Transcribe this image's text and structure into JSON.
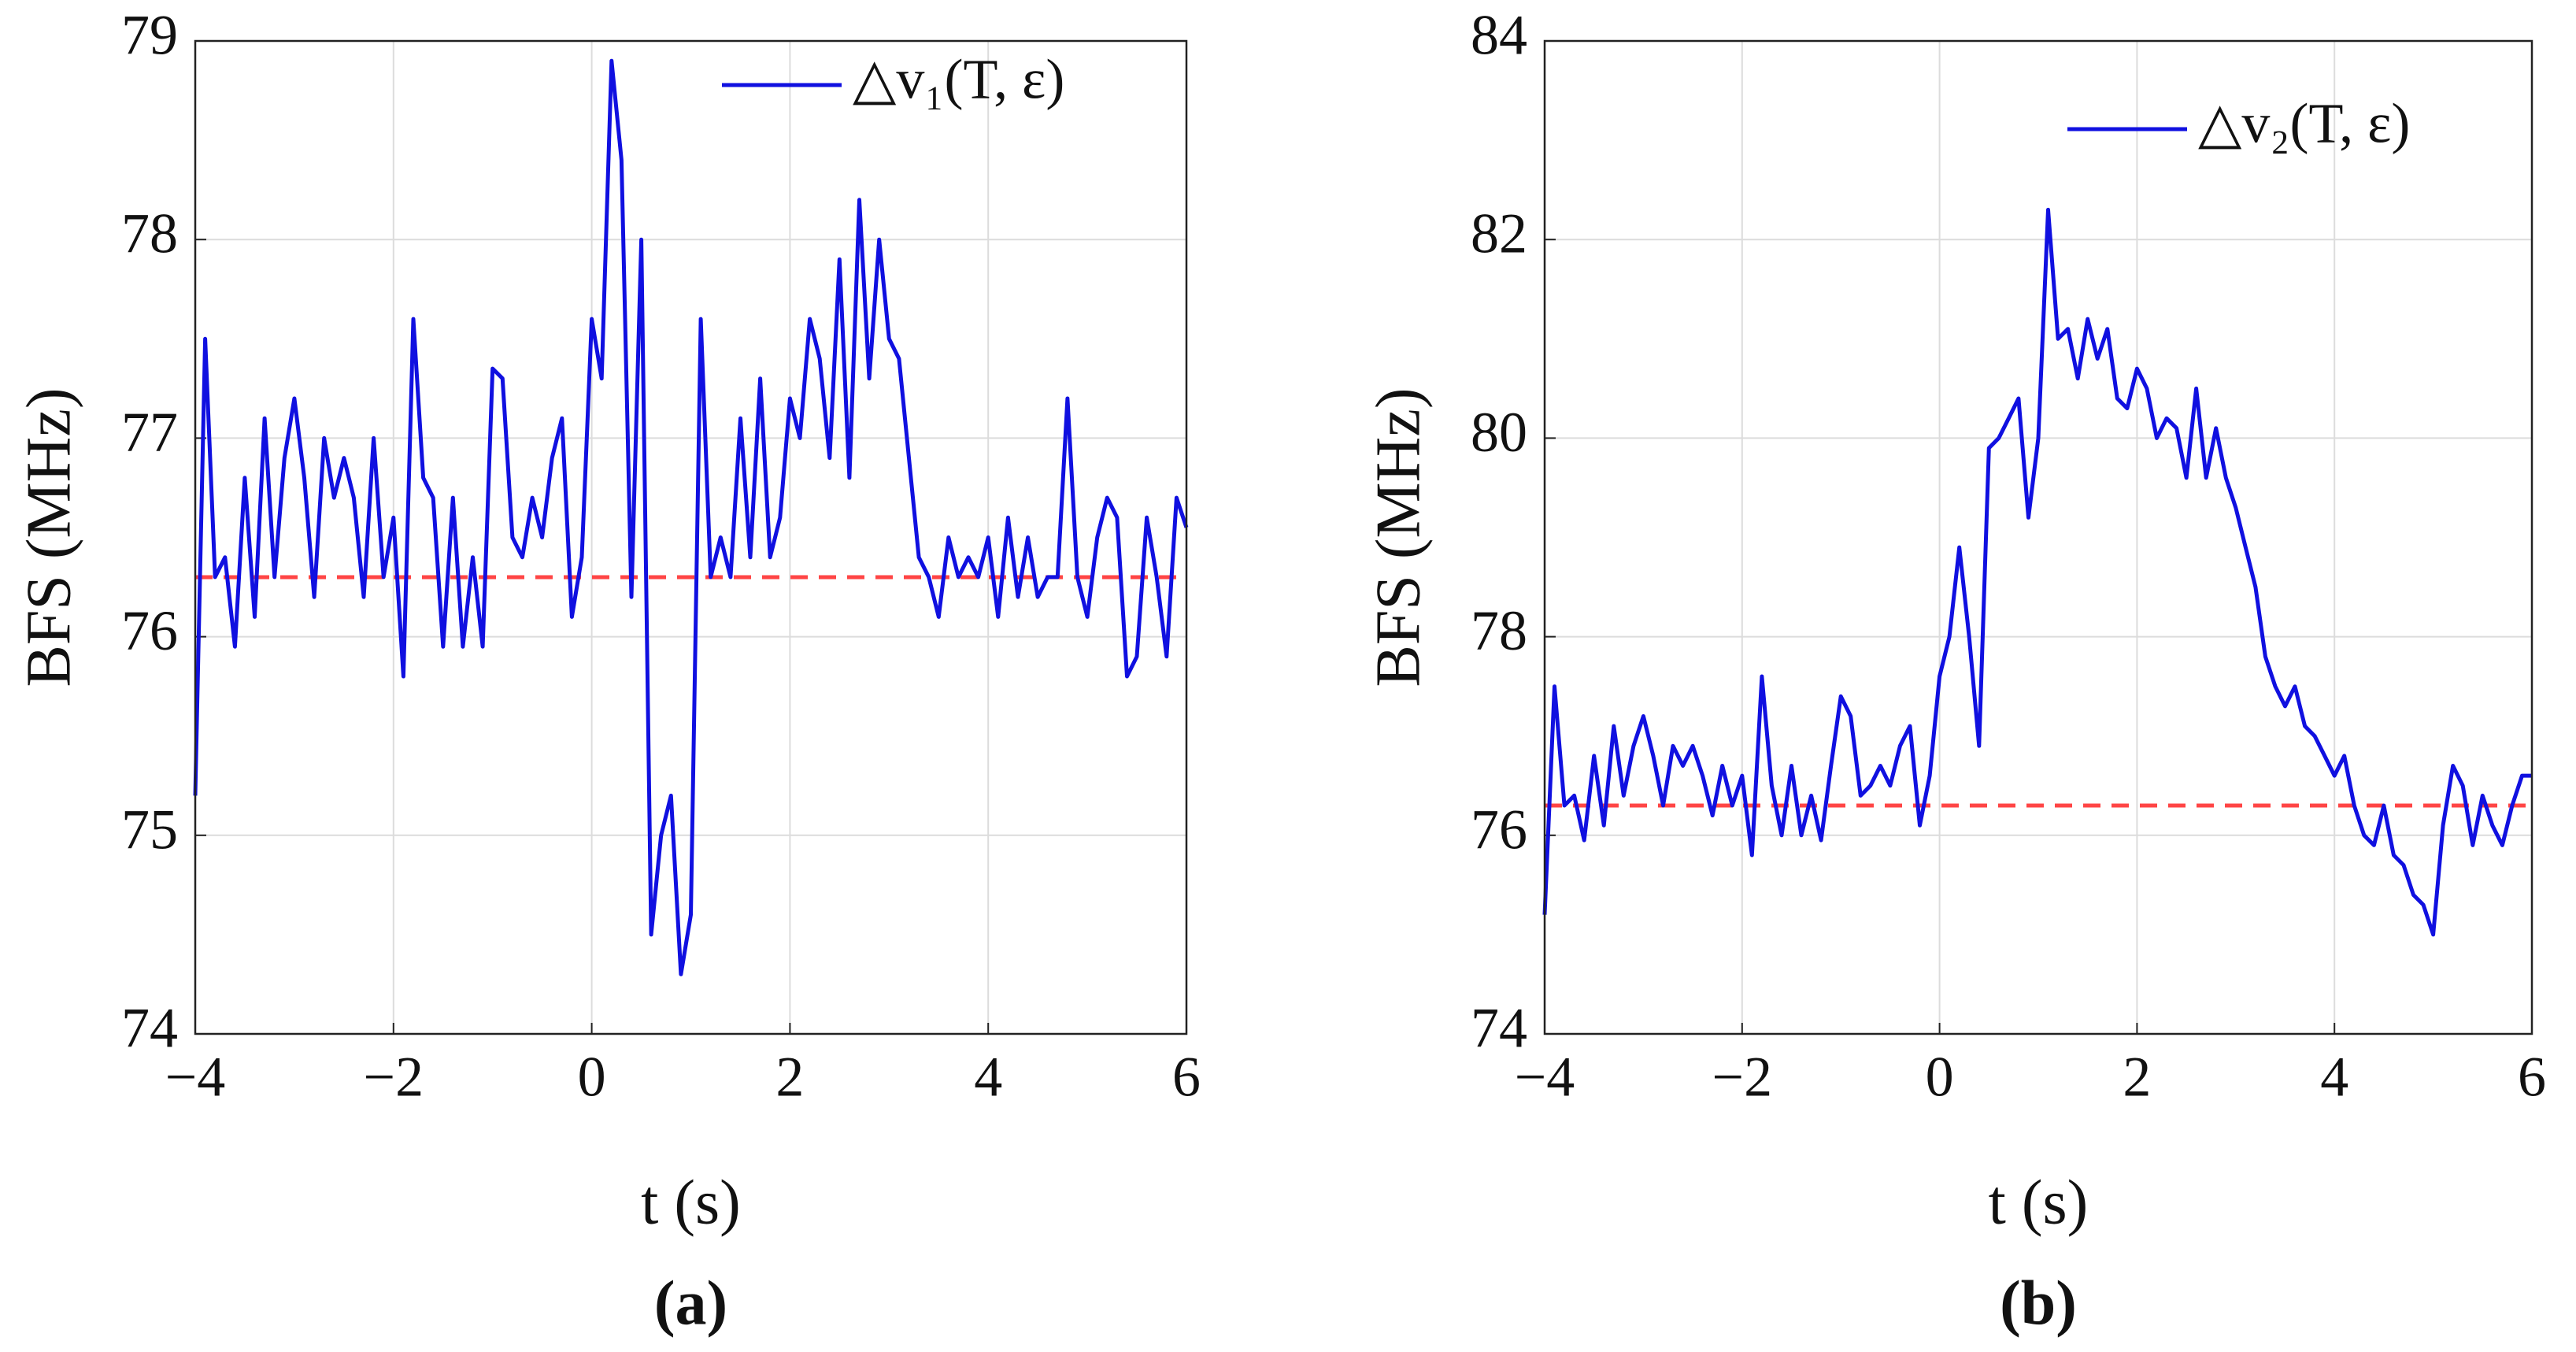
{
  "chart_data": [
    {
      "type": "line",
      "panel_label": "(a)",
      "xlabel": "t (s)",
      "ylabel": "BFS (MHz)",
      "xlim": [
        -4,
        6
      ],
      "ylim": [
        74,
        79
      ],
      "xticks": [
        {
          "value": -4,
          "label": "−4"
        },
        {
          "value": -2,
          "label": "−2"
        },
        0,
        2,
        4,
        6
      ],
      "yticks": [
        74,
        75,
        76,
        77,
        78,
        79
      ],
      "grid": true,
      "legend": "upper right",
      "reference_line": 76.3,
      "reference_color": "#ff4545",
      "x": [
        -4,
        -3.9,
        -3.8,
        -3.7,
        -3.6,
        -3.5,
        -3.4,
        -3.3,
        -3.2,
        -3.1,
        -3,
        -2.9,
        -2.8,
        -2.7,
        -2.6,
        -2.5,
        -2.4,
        -2.3,
        -2.2,
        -2.1,
        -2,
        -1.9,
        -1.8,
        -1.7,
        -1.6,
        -1.5,
        -1.4,
        -1.3,
        -1.2,
        -1.1,
        -1,
        -0.9,
        -0.8,
        -0.7,
        -0.6,
        -0.5,
        -0.4,
        -0.3,
        -0.2,
        -0.1,
        0,
        0.1,
        0.2,
        0.3,
        0.4,
        0.5,
        0.6,
        0.7,
        0.8,
        0.9,
        1,
        1.1,
        1.2,
        1.3,
        1.4,
        1.5,
        1.6,
        1.7,
        1.8,
        1.9,
        2,
        2.1,
        2.2,
        2.3,
        2.4,
        2.5,
        2.6,
        2.7,
        2.8,
        2.9,
        3,
        3.1,
        3.2,
        3.3,
        3.4,
        3.5,
        3.6,
        3.7,
        3.8,
        3.9,
        4,
        4.1,
        4.2,
        4.3,
        4.4,
        4.5,
        4.6,
        4.7,
        4.8,
        4.9,
        5,
        5.1,
        5.2,
        5.3,
        5.4,
        5.5,
        5.6,
        5.7,
        5.8,
        5.9,
        6
      ],
      "series": [
        {
          "name": "△v₁(T, ε)",
          "color": "#1010e0",
          "values": [
            75.2,
            77.5,
            76.3,
            76.4,
            75.95,
            76.8,
            76.1,
            77.1,
            76.3,
            76.9,
            77.2,
            76.8,
            76.2,
            77.0,
            76.7,
            76.9,
            76.7,
            76.2,
            77.0,
            76.3,
            76.6,
            75.8,
            77.6,
            76.8,
            76.7,
            75.95,
            76.7,
            75.95,
            76.4,
            75.95,
            77.35,
            77.3,
            76.5,
            76.4,
            76.7,
            76.5,
            76.9,
            77.1,
            76.1,
            76.4,
            77.6,
            77.3,
            78.9,
            78.4,
            76.2,
            78.0,
            74.5,
            75.0,
            75.2,
            74.3,
            74.6,
            77.6,
            76.3,
            76.5,
            76.3,
            77.1,
            76.4,
            77.3,
            76.4,
            76.6,
            77.2,
            77.0,
            77.6,
            77.4,
            76.9,
            77.9,
            76.8,
            78.2,
            77.3,
            78.0,
            77.5,
            77.4,
            76.9,
            76.4,
            76.3,
            76.1,
            76.5,
            76.3,
            76.4,
            76.3,
            76.5,
            76.1,
            76.6,
            76.2,
            76.5,
            76.2,
            76.3,
            76.3,
            77.2,
            76.3,
            76.1,
            76.5,
            76.7,
            76.6,
            75.8,
            75.9,
            76.6,
            76.3,
            75.9,
            76.7,
            76.55
          ]
        }
      ]
    },
    {
      "type": "line",
      "panel_label": "(b)",
      "xlabel": "t (s)",
      "ylabel": "BFS (MHz)",
      "xlim": [
        -4,
        6
      ],
      "ylim": [
        74,
        84
      ],
      "xticks": [
        {
          "value": -4,
          "label": "−4"
        },
        {
          "value": -2,
          "label": "−2"
        },
        0,
        2,
        4,
        6
      ],
      "yticks": [
        74,
        76,
        78,
        80,
        82,
        84
      ],
      "grid": true,
      "legend": "upper right",
      "reference_line": 76.3,
      "reference_color": "#ff4545",
      "x": [
        -4,
        -3.9,
        -3.8,
        -3.7,
        -3.6,
        -3.5,
        -3.4,
        -3.3,
        -3.2,
        -3.1,
        -3,
        -2.9,
        -2.8,
        -2.7,
        -2.6,
        -2.5,
        -2.4,
        -2.3,
        -2.2,
        -2.1,
        -2,
        -1.9,
        -1.8,
        -1.7,
        -1.6,
        -1.5,
        -1.4,
        -1.3,
        -1.2,
        -1.1,
        -1,
        -0.9,
        -0.8,
        -0.7,
        -0.6,
        -0.5,
        -0.4,
        -0.3,
        -0.2,
        -0.1,
        0,
        0.1,
        0.2,
        0.3,
        0.4,
        0.5,
        0.6,
        0.7,
        0.8,
        0.9,
        1,
        1.1,
        1.2,
        1.3,
        1.4,
        1.5,
        1.6,
        1.7,
        1.8,
        1.9,
        2,
        2.1,
        2.2,
        2.3,
        2.4,
        2.5,
        2.6,
        2.7,
        2.8,
        2.9,
        3,
        3.1,
        3.2,
        3.3,
        3.4,
        3.5,
        3.6,
        3.7,
        3.8,
        3.9,
        4,
        4.1,
        4.2,
        4.3,
        4.4,
        4.5,
        4.6,
        4.7,
        4.8,
        4.9,
        5,
        5.1,
        5.2,
        5.3,
        5.4,
        5.5,
        5.6,
        5.7,
        5.8,
        5.9,
        6
      ],
      "series": [
        {
          "name": "△v₂(T, ε)",
          "color": "#1010e0",
          "values": [
            75.2,
            77.5,
            76.3,
            76.4,
            75.95,
            76.8,
            76.1,
            77.1,
            76.4,
            76.9,
            77.2,
            76.8,
            76.3,
            76.9,
            76.7,
            76.9,
            76.6,
            76.2,
            76.7,
            76.3,
            76.6,
            75.8,
            77.6,
            76.5,
            76.0,
            76.7,
            76.0,
            76.4,
            75.95,
            76.7,
            77.4,
            77.2,
            76.4,
            76.5,
            76.7,
            76.5,
            76.9,
            77.1,
            76.1,
            76.6,
            77.6,
            78.0,
            78.9,
            78.0,
            76.9,
            79.9,
            80.0,
            80.2,
            80.4,
            79.2,
            80.0,
            82.3,
            81.0,
            81.1,
            80.6,
            81.2,
            80.8,
            81.1,
            80.4,
            80.3,
            80.7,
            80.5,
            80.0,
            80.2,
            80.1,
            79.6,
            80.5,
            79.6,
            80.1,
            79.6,
            79.3,
            78.9,
            78.5,
            77.8,
            77.5,
            77.3,
            77.5,
            77.1,
            77.0,
            76.8,
            76.6,
            76.8,
            76.3,
            76.0,
            75.9,
            76.3,
            75.8,
            75.7,
            75.4,
            75.3,
            75.0,
            76.1,
            76.7,
            76.5,
            75.9,
            76.4,
            76.1,
            75.9,
            76.3,
            76.6,
            76.6
          ]
        }
      ]
    }
  ]
}
